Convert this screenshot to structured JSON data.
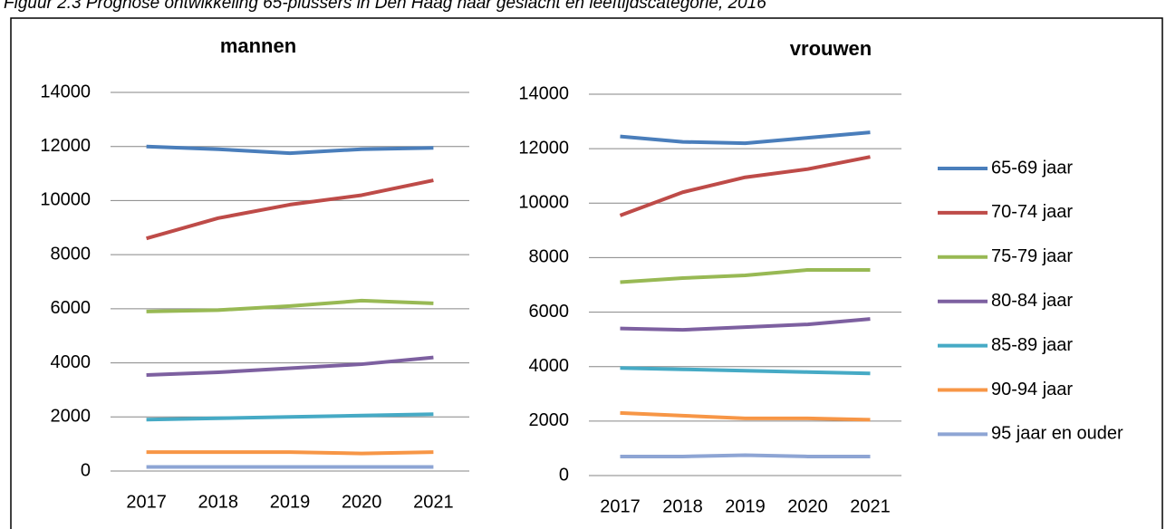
{
  "page_title": "Figuur 2.3 Prognose ontwikkeling 65-plussers in Den Haag naar geslacht en leeftijdscategorie, 2016",
  "chart_data": [
    {
      "type": "line",
      "title": "mannen",
      "categories": [
        "2017",
        "2018",
        "2019",
        "2020",
        "2021"
      ],
      "ylim": [
        0,
        14000
      ],
      "yticks": [
        0,
        2000,
        4000,
        6000,
        8000,
        10000,
        12000,
        14000
      ],
      "grid": true,
      "series": [
        {
          "name": "65-69 jaar",
          "color": "#4a7ebb",
          "values": [
            12000,
            11900,
            11750,
            11900,
            11950
          ]
        },
        {
          "name": "70-74 jaar",
          "color": "#be4b48",
          "values": [
            8600,
            9350,
            9850,
            10200,
            10750
          ]
        },
        {
          "name": "75-79 jaar",
          "color": "#98b954",
          "values": [
            5900,
            5950,
            6100,
            6300,
            6200
          ]
        },
        {
          "name": "80-84 jaar",
          "color": "#7d60a0",
          "values": [
            3550,
            3650,
            3800,
            3950,
            4200
          ]
        },
        {
          "name": "85-89 jaar",
          "color": "#46aac5",
          "values": [
            1900,
            1950,
            2000,
            2050,
            2100
          ]
        },
        {
          "name": "90-94 jaar",
          "color": "#f79646",
          "values": [
            700,
            700,
            700,
            650,
            700
          ]
        },
        {
          "name": "95 jaar en ouder",
          "color": "#8ea5d4",
          "values": [
            150,
            150,
            150,
            150,
            150
          ]
        }
      ]
    },
    {
      "type": "line",
      "title": "vrouwen",
      "categories": [
        "2017",
        "2018",
        "2019",
        "2020",
        "2021"
      ],
      "ylim": [
        0,
        14000
      ],
      "yticks": [
        0,
        2000,
        4000,
        6000,
        8000,
        10000,
        12000,
        14000
      ],
      "grid": true,
      "legend": "right",
      "series": [
        {
          "name": "65-69 jaar",
          "color": "#4a7ebb",
          "values": [
            12450,
            12250,
            12200,
            12400,
            12600
          ]
        },
        {
          "name": "70-74 jaar",
          "color": "#be4b48",
          "values": [
            9550,
            10400,
            10950,
            11250,
            11700
          ]
        },
        {
          "name": "75-79 jaar",
          "color": "#98b954",
          "values": [
            7100,
            7250,
            7350,
            7550,
            7550
          ]
        },
        {
          "name": "80-84 jaar",
          "color": "#7d60a0",
          "values": [
            5400,
            5350,
            5450,
            5550,
            5750
          ]
        },
        {
          "name": "85-89 jaar",
          "color": "#46aac5",
          "values": [
            3950,
            3900,
            3850,
            3800,
            3750
          ]
        },
        {
          "name": "90-94 jaar",
          "color": "#f79646",
          "values": [
            2300,
            2200,
            2100,
            2100,
            2050
          ]
        },
        {
          "name": "95 jaar en ouder",
          "color": "#8ea5d4",
          "values": [
            700,
            700,
            750,
            700,
            700
          ]
        }
      ]
    }
  ]
}
